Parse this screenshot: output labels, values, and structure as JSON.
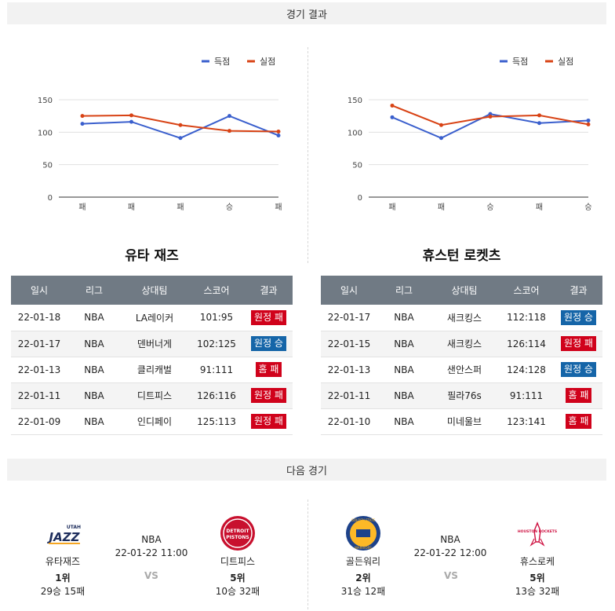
{
  "results_header": "경기 결과",
  "next_header": "다음 경기",
  "legend": {
    "scored": "득점",
    "conceded": "실점"
  },
  "colors": {
    "scored": "#3a5fcd",
    "conceded": "#d84315",
    "loss": "#d0021b",
    "win": "#1565a8"
  },
  "chart_data": [
    {
      "type": "line",
      "categories": [
        "패",
        "패",
        "패",
        "승",
        "패"
      ],
      "ylim": [
        0,
        150
      ],
      "yticks": [
        0,
        50,
        100,
        150
      ],
      "series": [
        {
          "name": "득점",
          "values": [
            113,
            116,
            91,
            125,
            95
          ]
        },
        {
          "name": "실점",
          "values": [
            125,
            126,
            111,
            102,
            101
          ]
        }
      ],
      "grid": true,
      "legend_position": "top-right"
    },
    {
      "type": "line",
      "categories": [
        "패",
        "패",
        "승",
        "패",
        "승"
      ],
      "ylim": [
        0,
        150
      ],
      "yticks": [
        0,
        50,
        100,
        150
      ],
      "series": [
        {
          "name": "득점",
          "values": [
            123,
            91,
            128,
            114,
            118
          ]
        },
        {
          "name": "실점",
          "values": [
            141,
            111,
            124,
            126,
            112
          ]
        }
      ],
      "grid": true,
      "legend_position": "top-right"
    }
  ],
  "tables": [
    {
      "team": "유타 재즈",
      "headers": [
        "일시",
        "리그",
        "상대팀",
        "스코어",
        "결과"
      ],
      "rows": [
        {
          "date": "22-01-18",
          "league": "NBA",
          "opponent": "LA레이커",
          "score": "101:95",
          "result": "원정 패",
          "color": "red"
        },
        {
          "date": "22-01-17",
          "league": "NBA",
          "opponent": "덴버너게",
          "score": "102:125",
          "result": "원정 승",
          "color": "blue"
        },
        {
          "date": "22-01-13",
          "league": "NBA",
          "opponent": "클리캐벌",
          "score": "91:111",
          "result": "홈 패",
          "color": "red"
        },
        {
          "date": "22-01-11",
          "league": "NBA",
          "opponent": "디트피스",
          "score": "126:116",
          "result": "원정 패",
          "color": "red"
        },
        {
          "date": "22-01-09",
          "league": "NBA",
          "opponent": "인디페이",
          "score": "125:113",
          "result": "원정 패",
          "color": "red"
        }
      ]
    },
    {
      "team": "휴스턴 로켓츠",
      "headers": [
        "일시",
        "리그",
        "상대팀",
        "스코어",
        "결과"
      ],
      "rows": [
        {
          "date": "22-01-17",
          "league": "NBA",
          "opponent": "새크킹스",
          "score": "112:118",
          "result": "원정 승",
          "color": "blue"
        },
        {
          "date": "22-01-15",
          "league": "NBA",
          "opponent": "새크킹스",
          "score": "126:114",
          "result": "원정 패",
          "color": "red"
        },
        {
          "date": "22-01-13",
          "league": "NBA",
          "opponent": "샌안스퍼",
          "score": "124:128",
          "result": "원정 승",
          "color": "blue"
        },
        {
          "date": "22-01-11",
          "league": "NBA",
          "opponent": "필라76s",
          "score": "91:111",
          "result": "홈 패",
          "color": "red"
        },
        {
          "date": "22-01-10",
          "league": "NBA",
          "opponent": "미네울브",
          "score": "123:141",
          "result": "홈 패",
          "color": "red"
        }
      ]
    }
  ],
  "next_games": [
    {
      "league": "NBA",
      "datetime": "22-01-22 11:00",
      "vs": "VS",
      "home": {
        "name": "유타재즈",
        "rank": "1위",
        "record": "29승 15패",
        "logo_text": "JAZZ",
        "logo_sub": "UTAH",
        "logo": "jazz-logo"
      },
      "away": {
        "name": "디트피스",
        "rank": "5위",
        "record": "10승 32패",
        "logo_text": "DETROIT",
        "logo_sub": "PISTONS",
        "logo": "pistons-logo"
      }
    },
    {
      "league": "NBA",
      "datetime": "22-01-22 12:00",
      "vs": "VS",
      "home": {
        "name": "골든워리",
        "rank": "2위",
        "record": "31승 12패",
        "logo_text": "GOLDEN STATE",
        "logo_sub": "WARRIORS",
        "logo": "warriors-logo"
      },
      "away": {
        "name": "휴스로케",
        "rank": "5위",
        "record": "13승 32패",
        "logo_text": "HOUSTON ROCKETS",
        "logo_sub": "",
        "logo": "rockets-logo"
      }
    }
  ]
}
